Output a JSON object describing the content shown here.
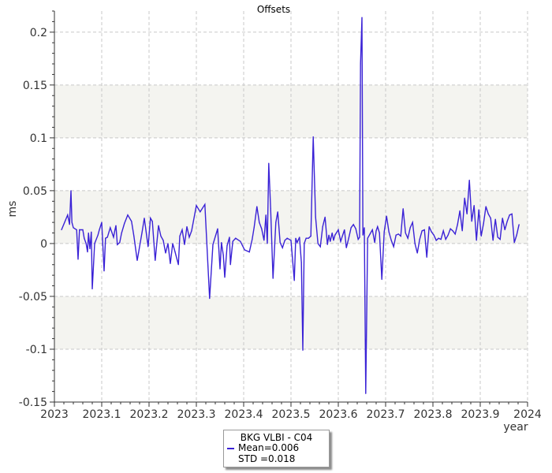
{
  "chart_data": {
    "type": "line",
    "title": "Offsets",
    "xlabel": "year",
    "ylabel": "ms",
    "xlim": [
      2023,
      2024
    ],
    "ylim": [
      -0.15,
      0.22
    ],
    "x_ticks": [
      "2023",
      "2023.1",
      "2023.2",
      "2023.3",
      "2023.4",
      "2023.5",
      "2023.6",
      "2023.7",
      "2023.8",
      "2023.9",
      "2024"
    ],
    "y_ticks": [
      "0.2",
      "0.15",
      "0.1",
      "0.05",
      "0",
      "-0.05",
      "-0.1",
      "-0.15"
    ],
    "x_tick_values": [
      2023,
      2023.1,
      2023.2,
      2023.3,
      2023.4,
      2023.5,
      2023.6,
      2023.7,
      2023.8,
      2023.9,
      2024
    ],
    "y_tick_values": [
      0.2,
      0.15,
      0.1,
      0.05,
      0,
      -0.05,
      -0.1,
      -0.15
    ],
    "shaded_bands": [
      [
        0.1,
        0.15
      ],
      [
        0,
        0.05
      ],
      [
        -0.1,
        -0.05
      ]
    ],
    "grid": true,
    "legend_position": "bottom-center",
    "series": [
      {
        "name": "BKG VLBI - C04",
        "color": "#3a22d6",
        "x": [
          2023.015,
          2023.028,
          2023.032,
          2023.035,
          2023.037,
          2023.04,
          2023.047,
          2023.05,
          2023.053,
          2023.06,
          2023.063,
          2023.067,
          2023.07,
          2023.072,
          2023.075,
          2023.078,
          2023.08,
          2023.085,
          2023.092,
          2023.095,
          2023.1,
          2023.105,
          2023.108,
          2023.112,
          2023.118,
          2023.125,
          2023.128,
          2023.13,
          2023.133,
          2023.138,
          2023.142,
          2023.148,
          2023.155,
          2023.163,
          2023.168,
          2023.175,
          2023.185,
          2023.19,
          2023.198,
          2023.203,
          2023.207,
          2023.213,
          2023.22,
          2023.225,
          2023.23,
          2023.235,
          2023.24,
          2023.245,
          2023.25,
          2023.255,
          2023.262,
          2023.265,
          2023.27,
          2023.275,
          2023.28,
          2023.285,
          2023.29,
          2023.3,
          2023.308,
          2023.318,
          2023.328,
          2023.335,
          2023.345,
          2023.35,
          2023.353,
          2023.357,
          2023.36,
          2023.365,
          2023.37,
          2023.372,
          2023.377,
          2023.383,
          2023.393,
          2023.402,
          2023.412,
          2023.418,
          2023.422,
          2023.428,
          2023.433,
          2023.438,
          2023.443,
          2023.447,
          2023.45,
          2023.453,
          2023.457,
          2023.462,
          2023.468,
          2023.472,
          2023.477,
          2023.482,
          2023.487,
          2023.492,
          2023.5,
          2023.507,
          2023.51,
          2023.513,
          2023.518,
          2023.522,
          2023.525,
          2023.528,
          2023.532,
          2023.537,
          2023.542,
          2023.547,
          2023.552,
          2023.557,
          2023.562,
          2023.567,
          2023.572,
          2023.577,
          2023.58,
          2023.583,
          2023.587,
          2023.59,
          2023.593,
          2023.6,
          2023.605,
          2023.613,
          2023.617,
          2023.622,
          2023.627,
          2023.632,
          2023.637,
          2023.642,
          2023.645,
          2023.647,
          2023.65,
          2023.652,
          2023.655,
          2023.658,
          2023.662,
          2023.667,
          2023.672,
          2023.677,
          2023.68,
          2023.683,
          2023.687,
          2023.692,
          2023.697,
          2023.702,
          2023.707,
          2023.712,
          2023.717,
          2023.722,
          2023.727,
          2023.732,
          2023.737,
          2023.742,
          2023.747,
          2023.752,
          2023.757,
          2023.762,
          2023.767,
          2023.772,
          2023.777,
          2023.782,
          2023.787,
          2023.792,
          2023.797,
          2023.802,
          2023.807,
          2023.812,
          2023.817,
          2023.822,
          2023.827,
          2023.832,
          2023.837,
          2023.842,
          2023.847,
          2023.852,
          2023.857,
          2023.862,
          2023.867,
          2023.872,
          2023.877,
          2023.882,
          2023.887,
          2023.892,
          2023.897,
          2023.902,
          2023.907,
          2023.912,
          2023.917,
          2023.922,
          2023.927,
          2023.932,
          2023.937,
          2023.942,
          2023.947,
          2023.952,
          2023.957,
          2023.962,
          2023.967,
          2023.972,
          2023.977,
          2023.982
        ],
        "y": [
          0.013,
          0.027,
          0.018,
          0.05,
          0.02,
          0.015,
          0.013,
          -0.015,
          0.013,
          0.013,
          0.005,
          0.0,
          -0.008,
          0.01,
          -0.005,
          0.011,
          -0.043,
          0.0,
          0.008,
          0.013,
          0.02,
          -0.026,
          0.005,
          0.006,
          0.015,
          0.006,
          0.013,
          0.017,
          -0.001,
          0.001,
          0.01,
          0.019,
          0.027,
          0.021,
          0.007,
          -0.016,
          0.01,
          0.024,
          -0.003,
          0.024,
          0.021,
          -0.016,
          0.017,
          0.007,
          0.003,
          -0.009,
          0.0,
          -0.019,
          0.0,
          -0.008,
          -0.02,
          0.007,
          0.013,
          -0.001,
          0.016,
          0.006,
          0.012,
          0.036,
          0.03,
          0.037,
          -0.052,
          -0.001,
          0.014,
          -0.024,
          0.001,
          -0.011,
          -0.032,
          -0.002,
          0.006,
          -0.02,
          0.002,
          0.005,
          0.002,
          -0.006,
          -0.008,
          0.004,
          0.015,
          0.035,
          0.02,
          0.014,
          0.003,
          0.027,
          0.0,
          0.076,
          0.033,
          -0.033,
          0.02,
          0.03,
          0.001,
          -0.004,
          0.003,
          0.005,
          0.003,
          -0.035,
          0.005,
          0.001,
          0.006,
          -0.018,
          -0.101,
          0.0,
          0.005,
          0.005,
          0.007,
          0.101,
          0.025,
          0.0,
          -0.003,
          0.016,
          0.025,
          -0.001,
          0.008,
          0.002,
          0.01,
          0.003,
          0.008,
          0.013,
          0.002,
          0.013,
          -0.004,
          0.005,
          0.015,
          0.018,
          0.014,
          0.004,
          0.006,
          0.17,
          0.214,
          0.008,
          0.015,
          -0.142,
          0.005,
          0.009,
          0.013,
          0.001,
          0.012,
          0.016,
          0.01,
          -0.034,
          0.011,
          0.026,
          0.011,
          0.003,
          -0.003,
          0.008,
          0.009,
          0.007,
          0.033,
          0.01,
          0.005,
          0.015,
          0.02,
          0.0,
          -0.009,
          0.004,
          0.012,
          0.013,
          -0.013,
          0.016,
          0.011,
          0.008,
          0.003,
          0.005,
          0.004,
          0.012,
          0.004,
          0.008,
          0.014,
          0.012,
          0.009,
          0.018,
          0.031,
          0.012,
          0.043,
          0.028,
          0.06,
          0.021,
          0.036,
          0.003,
          0.032,
          0.007,
          0.019,
          0.035,
          0.028,
          0.024,
          0.003,
          0.023,
          0.006,
          0.004,
          0.024,
          0.013,
          0.021,
          0.027,
          0.028,
          0.001,
          0.008,
          0.018
        ]
      }
    ],
    "legend": {
      "name": "BKG VLBI - C04",
      "mean": "Mean=0.006",
      "std": "STD =0.018"
    }
  }
}
